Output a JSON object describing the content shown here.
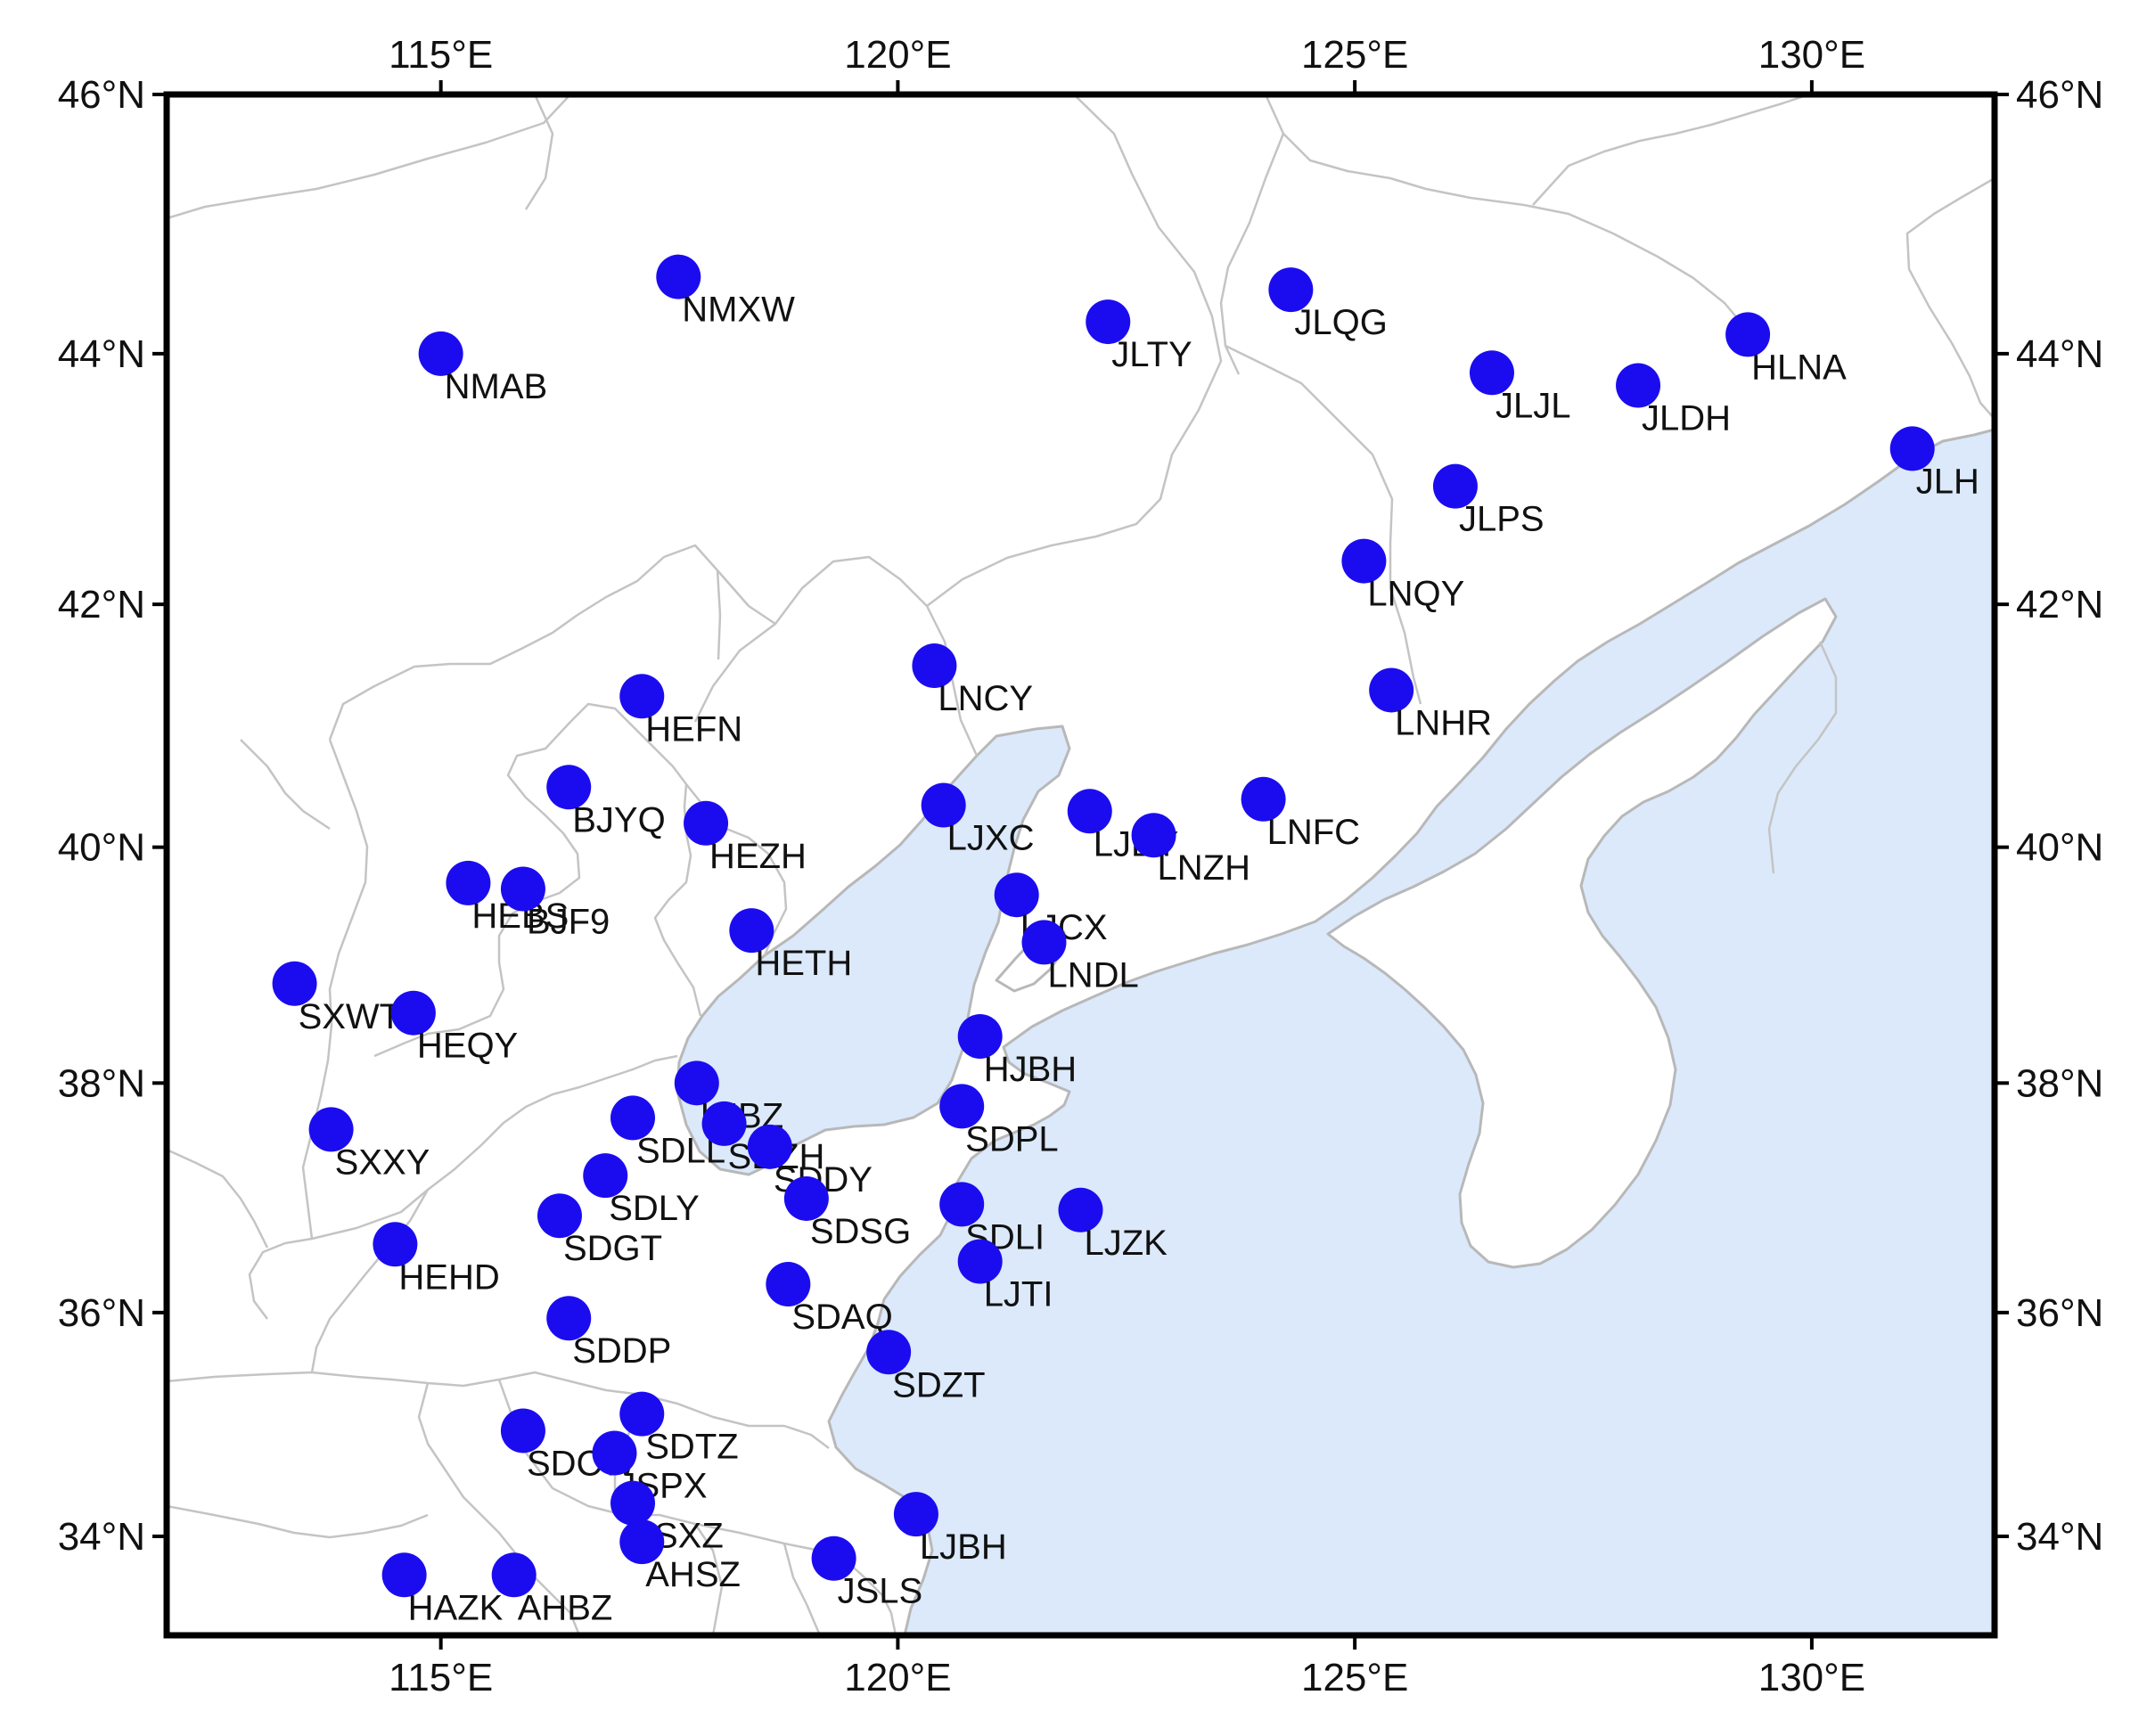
{
  "map": {
    "lon_range": [
      112,
      132
    ],
    "lat_range": [
      33.1,
      46
    ],
    "projection": "mercator",
    "colors": {
      "land": "#ffffff",
      "sea": "#dbe9fb",
      "borders": "#c4c4c4",
      "coast": "#b8b8b8",
      "frame": "#000000",
      "station_marker": "#1b0cf0"
    },
    "axes": {
      "x_ticks": [
        {
          "value": 115,
          "label": "115°E"
        },
        {
          "value": 120,
          "label": "120°E"
        },
        {
          "value": 125,
          "label": "125°E"
        },
        {
          "value": 130,
          "label": "130°E"
        }
      ],
      "y_ticks": [
        {
          "value": 34,
          "label": "34°N"
        },
        {
          "value": 36,
          "label": "36°N"
        },
        {
          "value": 38,
          "label": "38°N"
        },
        {
          "value": 40,
          "label": "40°N"
        },
        {
          "value": 42,
          "label": "42°N"
        },
        {
          "value": 44,
          "label": "44°N"
        },
        {
          "value": 46,
          "label": "46°N"
        }
      ]
    },
    "stations": [
      {
        "name": "NMXW",
        "lon": 117.6,
        "lat": 44.6
      },
      {
        "name": "NMAB",
        "lon": 115.0,
        "lat": 44.0
      },
      {
        "name": "JLTY",
        "lon": 122.3,
        "lat": 44.25
      },
      {
        "name": "JLQG",
        "lon": 124.3,
        "lat": 44.5
      },
      {
        "name": "JLJL",
        "lon": 126.5,
        "lat": 43.85
      },
      {
        "name": "JLDH",
        "lon": 128.1,
        "lat": 43.75
      },
      {
        "name": "HLNA",
        "lon": 129.3,
        "lat": 44.15
      },
      {
        "name": "JLH",
        "lon": 131.1,
        "lat": 43.25
      },
      {
        "name": "JLPS",
        "lon": 126.1,
        "lat": 42.95
      },
      {
        "name": "LNQY",
        "lon": 125.1,
        "lat": 42.35
      },
      {
        "name": "LNCY",
        "lon": 120.4,
        "lat": 41.5
      },
      {
        "name": "LNHR",
        "lon": 125.4,
        "lat": 41.3
      },
      {
        "name": "HEFN",
        "lon": 117.2,
        "lat": 41.25
      },
      {
        "name": "BJYQ",
        "lon": 116.4,
        "lat": 40.5
      },
      {
        "name": "HEZH",
        "lon": 117.9,
        "lat": 40.2
      },
      {
        "name": "LJXC",
        "lon": 120.5,
        "lat": 40.35
      },
      {
        "name": "LJBY",
        "lon": 122.1,
        "lat": 40.3
      },
      {
        "name": "LNZH",
        "lon": 122.8,
        "lat": 40.1
      },
      {
        "name": "LNFC",
        "lon": 124.0,
        "lat": 40.4
      },
      {
        "name": "HEBS",
        "lon": 115.3,
        "lat": 39.7
      },
      {
        "name": "BJF9",
        "lon": 115.9,
        "lat": 39.65
      },
      {
        "name": "LJCX",
        "lon": 121.3,
        "lat": 39.6
      },
      {
        "name": "LNDL",
        "lon": 121.6,
        "lat": 39.2
      },
      {
        "name": "HETH",
        "lon": 118.4,
        "lat": 39.3
      },
      {
        "name": "SXWT",
        "lon": 113.4,
        "lat": 38.85
      },
      {
        "name": "HEQY",
        "lon": 114.7,
        "lat": 38.6
      },
      {
        "name": "HJBH",
        "lon": 120.9,
        "lat": 38.4
      },
      {
        "name": "LJBZ",
        "lon": 117.8,
        "lat": 38.0
      },
      {
        "name": "SDPL",
        "lon": 120.7,
        "lat": 37.8
      },
      {
        "name": "SXXY",
        "lon": 113.8,
        "lat": 37.6
      },
      {
        "name": "SDLL",
        "lon": 117.1,
        "lat": 37.7
      },
      {
        "name": "SDZH",
        "lon": 118.1,
        "lat": 37.65
      },
      {
        "name": "SDDY",
        "lon": 118.6,
        "lat": 37.45
      },
      {
        "name": "SDLY",
        "lon": 116.8,
        "lat": 37.2
      },
      {
        "name": "SDSG",
        "lon": 119.0,
        "lat": 37.0
      },
      {
        "name": "SDLI",
        "lon": 120.7,
        "lat": 36.95
      },
      {
        "name": "LJZK",
        "lon": 122.0,
        "lat": 36.9
      },
      {
        "name": "SDGT",
        "lon": 116.3,
        "lat": 36.85
      },
      {
        "name": "HEHD",
        "lon": 114.5,
        "lat": 36.6
      },
      {
        "name": "LJTI",
        "lon": 120.9,
        "lat": 36.45
      },
      {
        "name": "SDAQ",
        "lon": 118.8,
        "lat": 36.25
      },
      {
        "name": "SDDP",
        "lon": 116.4,
        "lat": 35.95
      },
      {
        "name": "SDZT",
        "lon": 119.9,
        "lat": 35.65
      },
      {
        "name": "SDTZ",
        "lon": 117.2,
        "lat": 35.1
      },
      {
        "name": "SDCW",
        "lon": 115.9,
        "lat": 34.95
      },
      {
        "name": "JSPX",
        "lon": 116.9,
        "lat": 34.75
      },
      {
        "name": "JSXZ",
        "lon": 117.1,
        "lat": 34.3
      },
      {
        "name": "LJBH",
        "lon": 120.2,
        "lat": 34.2
      },
      {
        "name": "AHSZ",
        "lon": 117.2,
        "lat": 33.95
      },
      {
        "name": "JSLS",
        "lon": 119.3,
        "lat": 33.8
      },
      {
        "name": "HAZK",
        "lon": 114.6,
        "lat": 33.65
      },
      {
        "name": "AHBZ",
        "lon": 115.8,
        "lat": 33.65
      }
    ]
  }
}
